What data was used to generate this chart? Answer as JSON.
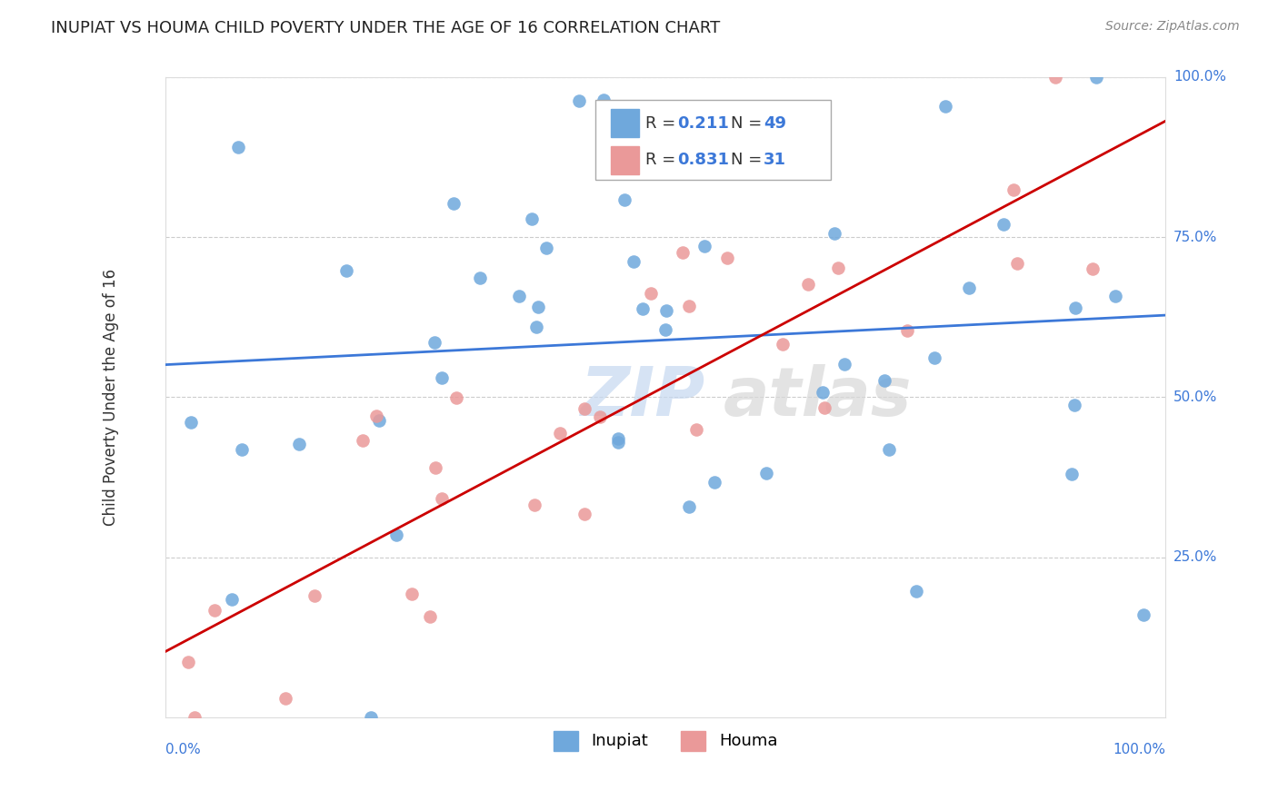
{
  "title": "INUPIAT VS HOUMA CHILD POVERTY UNDER THE AGE OF 16 CORRELATION CHART",
  "source": "Source: ZipAtlas.com",
  "ylabel": "Child Poverty Under the Age of 16",
  "watermark_zip": "ZIP",
  "watermark_atlas": "atlas",
  "inupiat_R": 0.211,
  "inupiat_N": 49,
  "houma_R": 0.831,
  "houma_N": 31,
  "inupiat_color": "#6fa8dc",
  "houma_color": "#ea9999",
  "inupiat_line_color": "#3c78d8",
  "houma_line_color": "#cc0000",
  "background_color": "#ffffff",
  "grid_color": "#cccccc",
  "xlim": [
    0.0,
    1.0
  ],
  "ylim": [
    0.0,
    1.0
  ]
}
